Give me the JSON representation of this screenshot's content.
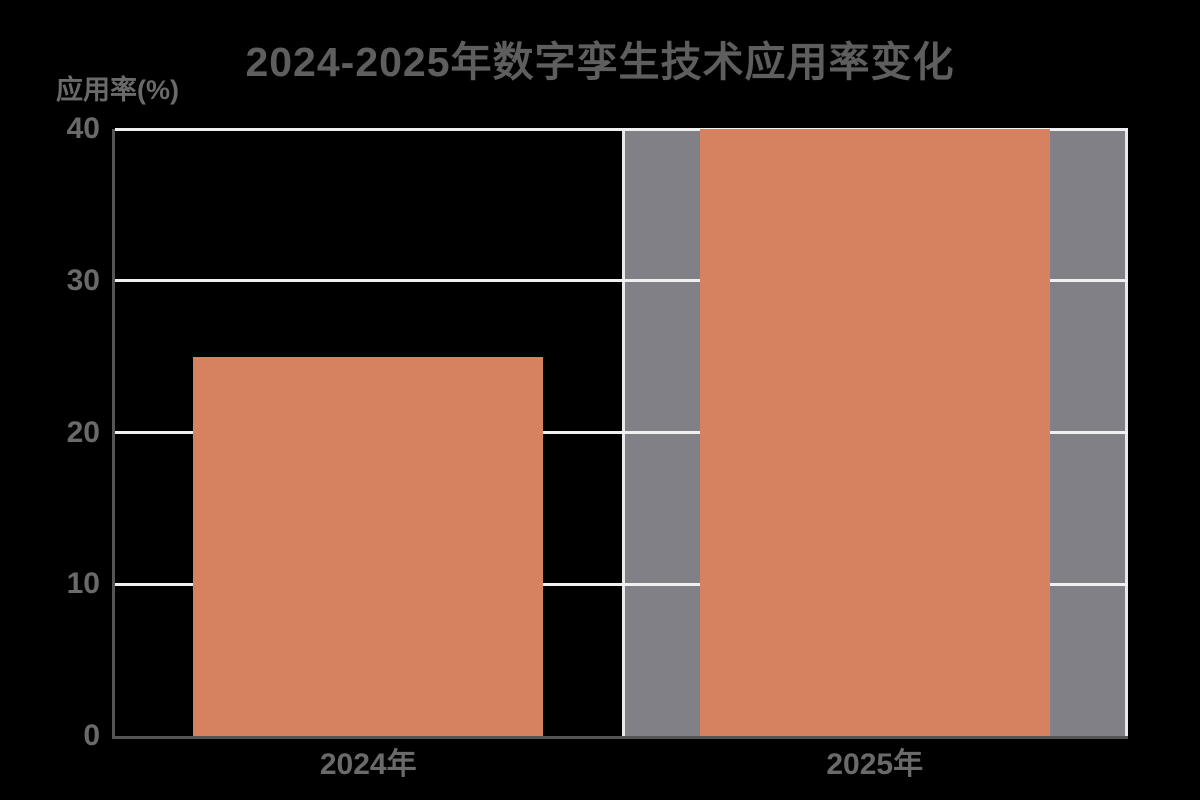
{
  "chart_data": {
    "type": "bar",
    "title": "2024-2025年数字孪生技术应用率变化",
    "ylabel": "应用率(%)",
    "categories": [
      "2024年",
      "2025年"
    ],
    "values": [
      25,
      40
    ],
    "ylim": [
      0,
      40
    ],
    "yticks": [
      0,
      10,
      20,
      30,
      40
    ],
    "grid": true,
    "legend": false,
    "highlight_band": {
      "category_index": 1,
      "label": "2025年"
    },
    "colors": {
      "background": "#000000",
      "bar": "#d6815f",
      "band": "#818086",
      "band_border": "#e9e9e7",
      "gridline": "#f0f0f0",
      "spine": "#555555",
      "title_text": "#5e5e5e",
      "axis_text": "#6a6a6a"
    }
  }
}
